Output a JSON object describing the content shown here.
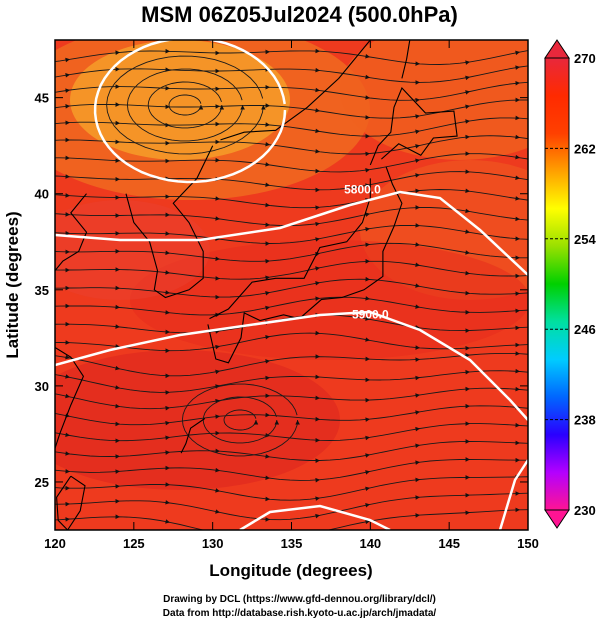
{
  "title": "MSM 06Z05Jul2024 (500.0hPa)",
  "map": {
    "projection": "lat-lon",
    "lon_range": [
      120,
      150
    ],
    "lat_range": [
      22.5,
      48
    ],
    "xlabel": "Longitude (degrees)",
    "ylabel": "Latitude  (degrees)",
    "lon_ticks": [
      "120",
      "125",
      "130",
      "135",
      "140",
      "145",
      "150"
    ],
    "lat_ticks": [
      "25",
      "30",
      "35",
      "40",
      "45"
    ],
    "background_field": "temperature (colour shaded)",
    "overlay": "wind streamlines with arrows",
    "contour_color": "#ffffff"
  },
  "contours": [
    {
      "label": "5800.0",
      "label_lon": 139.5,
      "label_lat": 40.0
    },
    {
      "label": "5900.0",
      "label_lon": 140.0,
      "label_lat": 33.5
    }
  ],
  "colorbar": {
    "min": 230,
    "max": 270,
    "tick_labels": [
      "270",
      "262",
      "254",
      "246",
      "238",
      "230"
    ],
    "colors": [
      "#ff1493",
      "#b300ff",
      "#2a00ff",
      "#0066ff",
      "#00ccff",
      "#00e0a0",
      "#00d000",
      "#99e000",
      "#ffff00",
      "#ffa000",
      "#ff4000",
      "#ff2a00",
      "#e8283c"
    ]
  },
  "credits": {
    "line1": "Drawing by DCL (https://www.gfd-dennou.org/library/dcl/)",
    "line2": "Data from http://database.rish.kyoto-u.ac.jp/arch/jmadata/"
  }
}
